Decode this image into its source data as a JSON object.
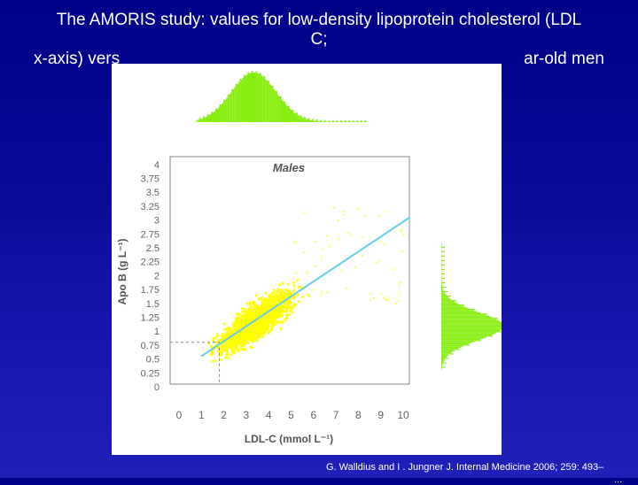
{
  "slide": {
    "title_line1": "The AMORIS study: values for low-density lipoprotein cholesterol (LDL",
    "title_line2": "C;",
    "title_line3": "x-axis) vers",
    "title_line3_end": "ar-old men",
    "citation": "G. Walldius and  I . Jungner J. Internal Medicine 2006; 259: 493–",
    "citation_tail": "..."
  },
  "chart_data": {
    "type": "scatter",
    "title": "Males",
    "xlabel": "LDL-C (mmol L⁻¹)",
    "ylabel": "Apo B (g L⁻¹)",
    "xlim": [
      0,
      10
    ],
    "ylim": [
      0,
      4
    ],
    "x_ticks": [
      "0",
      "1",
      "2",
      "3",
      "4",
      "5",
      "6",
      "7",
      "8",
      "9",
      "10"
    ],
    "y_ticks": [
      "0",
      "0.25",
      "0.5",
      "0.75",
      "1",
      "1.25",
      "1.5",
      "1.75",
      "2",
      "2.25",
      "2.5",
      "2.75",
      "3",
      "3.25",
      "3.5",
      "3.75",
      "4"
    ],
    "regression_line": {
      "x": [
        1,
        10.3
      ],
      "y": [
        0.55,
        3.05
      ]
    },
    "reference_lines": {
      "x": 1.8,
      "y": 0.8
    },
    "marginal_histograms": true,
    "colors": {
      "points": "#ffff00",
      "line": "#66ccee",
      "histogram": "#88ee11"
    },
    "grid": false
  }
}
